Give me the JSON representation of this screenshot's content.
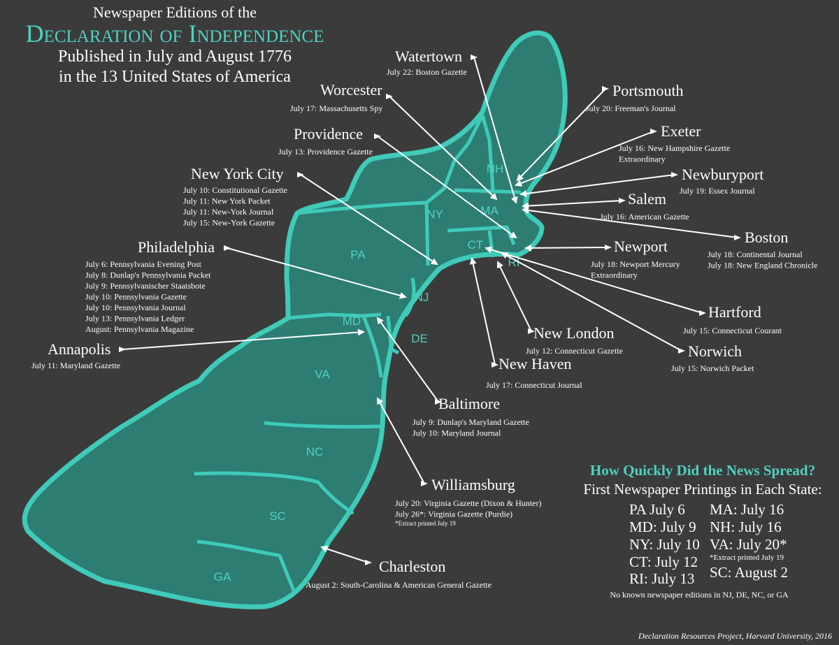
{
  "header": {
    "line1": "Newspaper Editions of the",
    "line2": "Declaration of Independence",
    "line3": "Published in July and August 1776",
    "line4": "in the 13 United States of America"
  },
  "states": [
    "NH",
    "NY",
    "MA",
    "PA",
    "CT",
    "RI",
    "NJ",
    "MD",
    "DE",
    "VA",
    "NC",
    "SC",
    "GA"
  ],
  "cities": [
    {
      "name": "Watertown",
      "editions": [
        "July 22: Boston Gazette"
      ]
    },
    {
      "name": "Worcester",
      "editions": [
        "July 17: Massachusetts Spy"
      ]
    },
    {
      "name": "Providence",
      "editions": [
        "July 13: Providence Gazette"
      ]
    },
    {
      "name": "New York City",
      "editions": [
        "July 10: Constitutional Gazette",
        "July 11: New York Packet",
        "July 11: New-York Journal",
        "July 15: New-York Gazette"
      ]
    },
    {
      "name": "Philadelphia",
      "editions": [
        "July 6: Pennsylvania Evening Post",
        "July 8: Dunlap's Pennsylvania Packet",
        "July 9: Pennsylvanischer Staatsbote",
        "July 10: Pennsylvania Gazette",
        "July 10: Pennsylvania Journal",
        "July 13: Pennsylvania Ledger",
        "August: Pennsylvania Magazine"
      ]
    },
    {
      "name": "Annapolis",
      "editions": [
        "July 11: Maryland Gazette"
      ]
    },
    {
      "name": "Baltimore",
      "editions": [
        "July 9: Dunlap's Maryland Gazette",
        "July 10: Maryland Journal"
      ]
    },
    {
      "name": "Williamsburg",
      "editions": [
        "July 20: Virginia Gazette (Dixon & Hunter)",
        "July 26*: Virginia Gazette (Purdie)"
      ],
      "note": "*Extract printed July 19"
    },
    {
      "name": "Charleston",
      "editions": [
        "August 2: South-Carolina & American General Gazette"
      ]
    },
    {
      "name": "Portsmouth",
      "editions": [
        "July 20: Freeman's Journal"
      ]
    },
    {
      "name": "Exeter",
      "editions": [
        "July 16: New Hampshire Gazette",
        "Extraordinary"
      ]
    },
    {
      "name": "Newburyport",
      "editions": [
        "July 19: Essex Journal"
      ]
    },
    {
      "name": "Salem",
      "editions": [
        "July 16: American Gazette"
      ]
    },
    {
      "name": "Boston",
      "editions": [
        "July 18: Continental Journal",
        "July 18: New England Chronicle"
      ]
    },
    {
      "name": "Newport",
      "editions": [
        "July 18: Newport Mercury",
        "Extraordinary"
      ]
    },
    {
      "name": "Hartford",
      "editions": [
        "July 15: Connecticut Courant"
      ]
    },
    {
      "name": "New London",
      "editions": [
        "July 12: Connecticut Gazette"
      ]
    },
    {
      "name": "Norwich",
      "editions": [
        "July 15: Norwich Packet"
      ]
    },
    {
      "name": "New Haven",
      "editions": [
        "July 17: Connecticut Journal"
      ]
    }
  ],
  "summary": {
    "title": "How Quickly Did the News Spread?",
    "subtitle": "First Newspaper Printings in Each State:",
    "left": [
      "PA July 6",
      "MD: July 9",
      "NY: July 10",
      "CT: July 12",
      "RI: July 13"
    ],
    "right": [
      "MA: July 16",
      "NH: July 16",
      "VA: July 20*",
      "SC: August 2"
    ],
    "note": "*Extract printed July 19",
    "footer": "No known newspaper editions in NJ, DE, NC, or GA"
  },
  "credit": "Declaration Resources Project, Harvard University, 2016"
}
